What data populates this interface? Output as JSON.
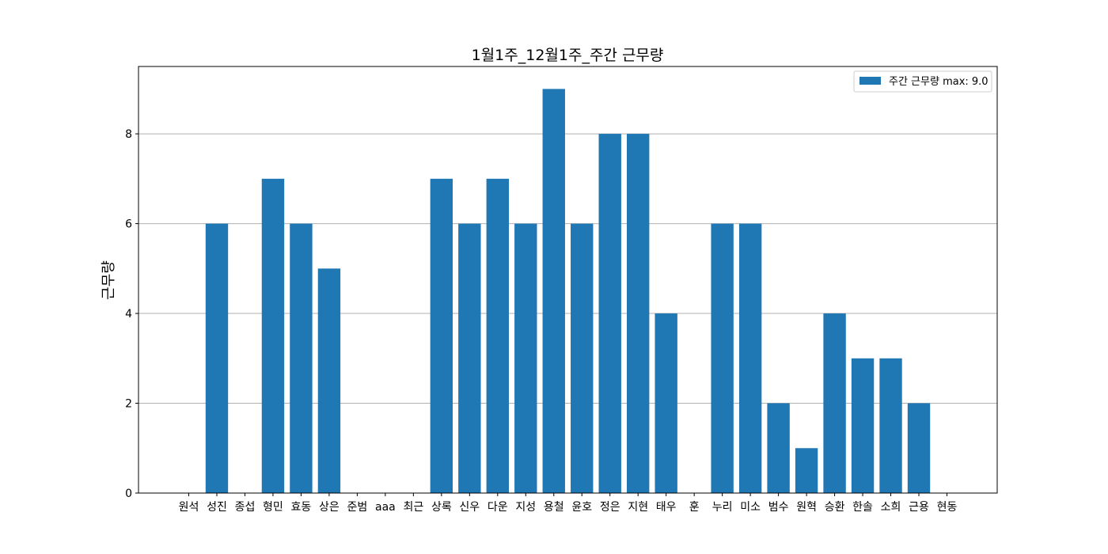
{
  "chart_data": {
    "type": "bar",
    "title": "1월1주_12월1주_주간 근무량",
    "xlabel": "",
    "ylabel": "근무량",
    "ylim": [
      0,
      9.5
    ],
    "yticks": [
      0,
      2,
      4,
      6,
      8
    ],
    "grid": "y",
    "legend_position": "top-right",
    "color": "#1f77b4",
    "categories": [
      "원석",
      "성진",
      "종섭",
      "형민",
      "효동",
      "상은",
      "준범",
      "aaa",
      "최근",
      "상록",
      "신우",
      "다운",
      "지성",
      "용철",
      "윤호",
      "정은",
      "지현",
      "태우",
      "훈",
      "누리",
      "미소",
      "범수",
      "원혁",
      "승환",
      "한솔",
      "소희",
      "근용",
      "현동"
    ],
    "series": [
      {
        "name": "주간 근무량 max: 9.0",
        "values": [
          0,
          6,
          0,
          7,
          6,
          5,
          0,
          0,
          0,
          7,
          6,
          7,
          6,
          9,
          6,
          8,
          8,
          4,
          0,
          6,
          6,
          2,
          1,
          4,
          3,
          3,
          2,
          0
        ]
      }
    ]
  }
}
